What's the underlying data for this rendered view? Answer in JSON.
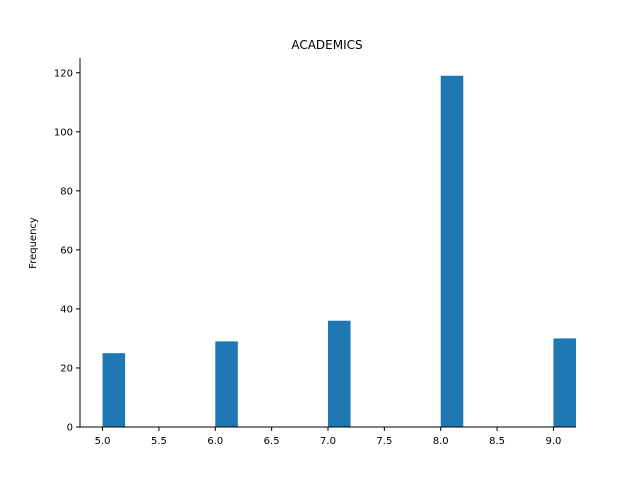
{
  "chart_data": {
    "type": "bar",
    "title": "ACADEMICS",
    "xlabel": "",
    "ylabel": "Frequency",
    "xlim": [
      4.8,
      9.2
    ],
    "ylim": [
      0,
      125
    ],
    "bin_width": 0.2,
    "bars": [
      {
        "x": 5.0,
        "value": 25
      },
      {
        "x": 6.0,
        "value": 29
      },
      {
        "x": 7.0,
        "value": 36
      },
      {
        "x": 8.0,
        "value": 119
      },
      {
        "x": 9.0,
        "value": 30
      }
    ],
    "x_ticks": [
      "5.0",
      "5.5",
      "6.0",
      "6.5",
      "7.0",
      "7.5",
      "8.0",
      "8.5",
      "9.0"
    ],
    "y_ticks": [
      "0",
      "20",
      "40",
      "60",
      "80",
      "100",
      "120"
    ],
    "grid": false,
    "bar_color": "#1f77b4"
  }
}
